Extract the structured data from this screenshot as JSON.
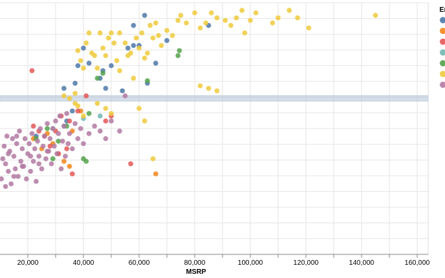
{
  "chart_data": {
    "type": "scatter",
    "xlabel": "MSRP",
    "ylabel": "",
    "xlim": [
      10000,
      164000
    ],
    "ylim": [
      0,
      1
    ],
    "x_ticks": [
      20000,
      40000,
      60000,
      80000,
      100000,
      120000,
      140000,
      160000
    ],
    "x_tick_labels": [
      "20,000",
      "40,000",
      "60,000",
      "80,000",
      "100,000",
      "120,000",
      "140,000",
      "160,000"
    ],
    "grid": true,
    "legend_title": "En",
    "legend_placement": "top-right",
    "brush_band_y": 0.62,
    "series": [
      {
        "color": "#4c78a8",
        "points": [
          [
            23000,
            0.47
          ],
          [
            33000,
            0.66
          ],
          [
            36000,
            0.57
          ],
          [
            38000,
            0.75
          ],
          [
            40000,
            0.82
          ],
          [
            42000,
            0.76
          ],
          [
            46000,
            0.7
          ],
          [
            47000,
            0.73
          ],
          [
            48000,
            0.66
          ],
          [
            50000,
            0.75
          ],
          [
            54000,
            0.65
          ],
          [
            56000,
            0.82
          ],
          [
            58000,
            0.83
          ],
          [
            58000,
            0.91
          ],
          [
            60000,
            0.83
          ],
          [
            62000,
            0.95
          ],
          [
            63000,
            0.68
          ],
          [
            66000,
            0.76
          ],
          [
            70000,
            0.85
          ],
          [
            85000,
            0.91
          ],
          [
            37000,
            0.68
          ],
          [
            34000,
            0.53
          ]
        ]
      },
      {
        "color": "#f58518",
        "points": [
          [
            22000,
            0.46
          ],
          [
            25000,
            0.42
          ],
          [
            27000,
            0.48
          ],
          [
            29000,
            0.44
          ],
          [
            31000,
            0.4
          ],
          [
            33000,
            0.37
          ],
          [
            35000,
            0.35
          ],
          [
            36000,
            0.49
          ],
          [
            39000,
            0.57
          ],
          [
            66000,
            0.32
          ]
        ]
      },
      {
        "color": "#e45756",
        "points": [
          [
            21500,
            0.73
          ],
          [
            22000,
            0.51
          ],
          [
            24000,
            0.49
          ],
          [
            26000,
            0.47
          ],
          [
            28000,
            0.43
          ],
          [
            30000,
            0.49
          ],
          [
            31000,
            0.4
          ],
          [
            32000,
            0.55
          ],
          [
            34000,
            0.42
          ],
          [
            35000,
            0.53
          ],
          [
            36000,
            0.32
          ],
          [
            38000,
            0.57
          ],
          [
            41000,
            0.63
          ],
          [
            48000,
            0.53
          ],
          [
            50000,
            0.55
          ],
          [
            57000,
            0.36
          ]
        ]
      },
      {
        "color": "#72b7b2",
        "points": [
          [
            29000,
            0.5
          ],
          [
            33000,
            0.51
          ],
          [
            40000,
            0.54
          ],
          [
            46000,
            0.55
          ]
        ]
      },
      {
        "color": "#54a24b",
        "points": [
          [
            23000,
            0.46
          ],
          [
            27000,
            0.5
          ],
          [
            29000,
            0.38
          ],
          [
            31000,
            0.45
          ],
          [
            34000,
            0.51
          ],
          [
            40000,
            0.38
          ],
          [
            41000,
            0.37
          ],
          [
            42000,
            0.56
          ],
          [
            45000,
            0.7
          ],
          [
            47000,
            0.72
          ],
          [
            63000,
            0.69
          ],
          [
            74000,
            0.79
          ],
          [
            74500,
            0.81
          ]
        ]
      },
      {
        "color": "#eeca3b",
        "points": [
          [
            33000,
            0.63
          ],
          [
            35000,
            0.62
          ],
          [
            37000,
            0.6
          ],
          [
            38000,
            0.81
          ],
          [
            39000,
            0.77
          ],
          [
            40000,
            0.74
          ],
          [
            41000,
            0.84
          ],
          [
            42000,
            0.88
          ],
          [
            43000,
            0.8
          ],
          [
            44000,
            0.79
          ],
          [
            45000,
            0.74
          ],
          [
            46000,
            0.88
          ],
          [
            47000,
            0.82
          ],
          [
            48000,
            0.79
          ],
          [
            49000,
            0.86
          ],
          [
            50000,
            0.88
          ],
          [
            51000,
            0.84
          ],
          [
            52000,
            0.77
          ],
          [
            53000,
            0.88
          ],
          [
            55000,
            0.84
          ],
          [
            56000,
            0.79
          ],
          [
            57000,
            0.8
          ],
          [
            59000,
            0.86
          ],
          [
            60000,
            0.82
          ],
          [
            61000,
            0.88
          ],
          [
            62000,
            0.78
          ],
          [
            63000,
            0.8
          ],
          [
            64000,
            0.91
          ],
          [
            65000,
            0.86
          ],
          [
            66000,
            0.92
          ],
          [
            67000,
            0.87
          ],
          [
            68000,
            0.83
          ],
          [
            70000,
            0.89
          ],
          [
            72000,
            0.87
          ],
          [
            74000,
            0.93
          ],
          [
            75000,
            0.95
          ],
          [
            77000,
            0.92
          ],
          [
            80000,
            0.96
          ],
          [
            82000,
            0.9
          ],
          [
            84000,
            0.92
          ],
          [
            86000,
            0.96
          ],
          [
            88000,
            0.94
          ],
          [
            91000,
            0.93
          ],
          [
            93000,
            0.91
          ],
          [
            95000,
            0.94
          ],
          [
            97000,
            0.97
          ],
          [
            98000,
            0.88
          ],
          [
            100000,
            0.93
          ],
          [
            102000,
            0.96
          ],
          [
            108000,
            0.92
          ],
          [
            110000,
            0.94
          ],
          [
            114000,
            0.97
          ],
          [
            117000,
            0.94
          ],
          [
            121000,
            0.9
          ],
          [
            145000,
            0.95
          ],
          [
            82000,
            0.67
          ],
          [
            85000,
            0.66
          ],
          [
            88000,
            0.65
          ],
          [
            53000,
            0.73
          ],
          [
            58000,
            0.7
          ],
          [
            60000,
            0.58
          ],
          [
            65000,
            0.38
          ],
          [
            62000,
            0.53
          ],
          [
            45000,
            0.6
          ],
          [
            48000,
            0.58
          ],
          [
            50000,
            0.56
          ],
          [
            37000,
            0.64
          ],
          [
            38000,
            0.59
          ],
          [
            40000,
            0.55
          ]
        ]
      },
      {
        "color": "#b279a2",
        "points": [
          [
            10500,
            0.3
          ],
          [
            11000,
            0.38
          ],
          [
            11500,
            0.43
          ],
          [
            12000,
            0.36
          ],
          [
            12500,
            0.47
          ],
          [
            13000,
            0.33
          ],
          [
            13500,
            0.41
          ],
          [
            14000,
            0.28
          ],
          [
            14500,
            0.46
          ],
          [
            15000,
            0.39
          ],
          [
            15500,
            0.34
          ],
          [
            16000,
            0.44
          ],
          [
            16500,
            0.31
          ],
          [
            17000,
            0.49
          ],
          [
            17500,
            0.37
          ],
          [
            18000,
            0.42
          ],
          [
            18500,
            0.35
          ],
          [
            19000,
            0.46
          ],
          [
            19500,
            0.3
          ],
          [
            20000,
            0.4
          ],
          [
            20500,
            0.44
          ],
          [
            21000,
            0.33
          ],
          [
            21500,
            0.48
          ],
          [
            22000,
            0.37
          ],
          [
            22500,
            0.42
          ],
          [
            23000,
            0.29
          ],
          [
            23500,
            0.45
          ],
          [
            24000,
            0.39
          ],
          [
            24500,
            0.5
          ],
          [
            25000,
            0.34
          ],
          [
            25500,
            0.43
          ],
          [
            26000,
            0.47
          ],
          [
            26500,
            0.38
          ],
          [
            27000,
            0.52
          ],
          [
            27500,
            0.41
          ],
          [
            28000,
            0.46
          ],
          [
            28500,
            0.36
          ],
          [
            29000,
            0.5
          ],
          [
            29500,
            0.43
          ],
          [
            30000,
            0.53
          ],
          [
            30500,
            0.4
          ],
          [
            31000,
            0.48
          ],
          [
            31500,
            0.55
          ],
          [
            32000,
            0.34
          ],
          [
            32500,
            0.45
          ],
          [
            33000,
            0.51
          ],
          [
            33500,
            0.39
          ],
          [
            34000,
            0.56
          ],
          [
            34500,
            0.44
          ],
          [
            35000,
            0.48
          ],
          [
            36000,
            0.42
          ],
          [
            37000,
            0.52
          ],
          [
            38000,
            0.46
          ],
          [
            39000,
            0.5
          ],
          [
            40000,
            0.44
          ],
          [
            42000,
            0.48
          ],
          [
            44000,
            0.51
          ],
          [
            46000,
            0.49
          ],
          [
            48000,
            0.46
          ],
          [
            50000,
            0.53
          ],
          [
            53000,
            0.49
          ],
          [
            55000,
            0.63
          ],
          [
            12000,
            0.27
          ],
          [
            15000,
            0.31
          ],
          [
            18000,
            0.35
          ],
          [
            21000,
            0.39
          ],
          [
            24000,
            0.36
          ],
          [
            27000,
            0.41
          ],
          [
            13000,
            0.4
          ],
          [
            16000,
            0.47
          ]
        ]
      }
    ]
  }
}
